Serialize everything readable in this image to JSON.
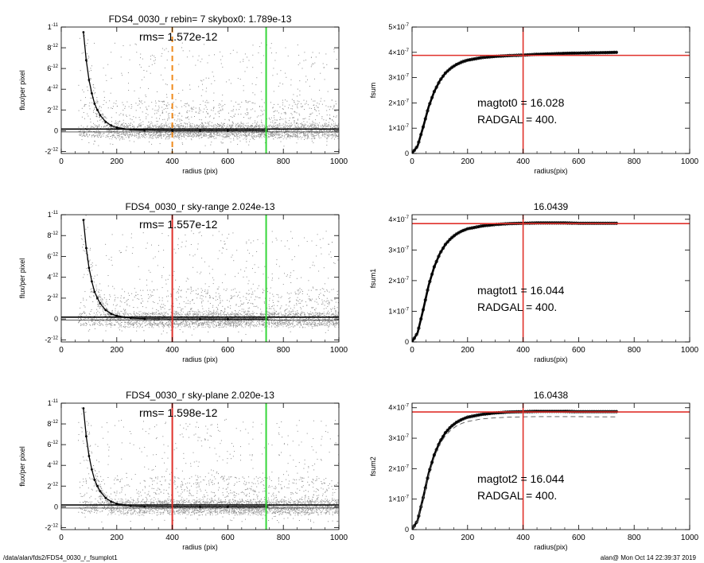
{
  "footer": {
    "path": "/data/alan/fds2/FDS4_0030_r_fsumplot1",
    "user_time": "alan@  Mon Oct 14 22:39:37 2019"
  },
  "colors": {
    "red": "#e0312b",
    "green": "#36d639",
    "orange": "#ef8a1c",
    "points": "#8c8c8c",
    "profile": "#000000"
  },
  "chart_data": [
    {
      "id": "profile1",
      "type": "scatter",
      "title": "FDS4_0030_r rebin= 7    skybox0:  1.789e-13",
      "annotation": "rms= 1.572e-12",
      "xlabel": "radius (pix)",
      "ylabel": "flux/per pixel",
      "xlim": [
        0,
        1000
      ],
      "ylim": [
        -2.2e-12,
        1e-11
      ],
      "xticks": [
        "0",
        "200",
        "400",
        "600",
        "800",
        "1000"
      ],
      "yticks": [
        {
          "v": -2e-12,
          "m": "-2",
          "e": "-12"
        },
        {
          "v": 0,
          "m": "0",
          "e": ""
        },
        {
          "v": 2e-12,
          "m": "2",
          "e": "-12"
        },
        {
          "v": 4e-12,
          "m": "4",
          "e": "-12"
        },
        {
          "v": 6e-12,
          "m": "6",
          "e": "-12"
        },
        {
          "v": 8e-12,
          "m": "8",
          "e": "-12"
        },
        {
          "v": 1e-11,
          "m": "1",
          "e": "-11"
        }
      ],
      "vlines": [
        {
          "x": 400,
          "color": "orange",
          "dashed": true
        },
        {
          "x": 738,
          "color": "green",
          "dashed": false
        }
      ],
      "hlines": [
        1.789e-13,
        1.2e-13,
        -1.2e-13
      ],
      "profile_points": [
        {
          "x": 80,
          "y": 9.5e-12
        },
        {
          "x": 90,
          "y": 6.8e-12
        },
        {
          "x": 100,
          "y": 4.9e-12
        },
        {
          "x": 110,
          "y": 3.6e-12
        },
        {
          "x": 120,
          "y": 2.6e-12
        },
        {
          "x": 130,
          "y": 2e-12
        },
        {
          "x": 140,
          "y": 1.5e-12
        },
        {
          "x": 160,
          "y": 8.5e-13
        },
        {
          "x": 180,
          "y": 5e-13
        },
        {
          "x": 200,
          "y": 3e-13
        },
        {
          "x": 250,
          "y": 1e-13
        },
        {
          "x": 300,
          "y": 3e-14
        },
        {
          "x": 400,
          "y": 0
        },
        {
          "x": 500,
          "y": 0
        },
        {
          "x": 600,
          "y": 0
        },
        {
          "x": 740,
          "y": 0
        }
      ]
    },
    {
      "id": "fsum0",
      "type": "line",
      "title": "",
      "annotation_lines": [
        "magtot0 =  16.028",
        "RADGAL =    400."
      ],
      "xlabel": "radius(pix)",
      "ylabel": "fsum",
      "xlim": [
        0,
        1000
      ],
      "ylim": [
        0,
        5e-07
      ],
      "xticks": [
        "0",
        "200",
        "400",
        "600",
        "800",
        "1000"
      ],
      "yticks": [
        {
          "v": 0,
          "m": "0",
          "e": ""
        },
        {
          "v": 1e-07,
          "m": "1×10",
          "e": "-7"
        },
        {
          "v": 2e-07,
          "m": "2×10",
          "e": "-7"
        },
        {
          "v": 3e-07,
          "m": "3×10",
          "e": "-7"
        },
        {
          "v": 4e-07,
          "m": "4×10",
          "e": "-7"
        },
        {
          "v": 5e-07,
          "m": "5×10",
          "e": "-7"
        }
      ],
      "vline": 400,
      "hline": 3.88e-07,
      "series": [
        {
          "role": "markers",
          "x": [
            0,
            20,
            40,
            60,
            80,
            100,
            120,
            140,
            160,
            180,
            200,
            250,
            300,
            350,
            400,
            450,
            500,
            550,
            600,
            650,
            700,
            740
          ],
          "y": [
            0,
            3e-08,
            1.05e-07,
            1.85e-07,
            2.45e-07,
            2.88e-07,
            3.18e-07,
            3.38e-07,
            3.52e-07,
            3.62e-07,
            3.69e-07,
            3.79e-07,
            3.84e-07,
            3.87e-07,
            3.89e-07,
            3.92e-07,
            3.94e-07,
            3.96e-07,
            3.97e-07,
            3.98e-07,
            3.99e-07,
            4e-07
          ]
        }
      ]
    },
    {
      "id": "profile2",
      "type": "scatter",
      "title": "FDS4_0030_r sky-range  2.024e-13",
      "annotation": "rms= 1.557e-12",
      "xlabel": "radius (pix)",
      "ylabel": "flux/per pixel",
      "xlim": [
        0,
        1000
      ],
      "ylim": [
        -2.2e-12,
        1e-11
      ],
      "xticks": [
        "0",
        "200",
        "400",
        "600",
        "800",
        "1000"
      ],
      "yticks": [
        {
          "v": -2e-12,
          "m": "-2",
          "e": "-12"
        },
        {
          "v": 0,
          "m": "0",
          "e": ""
        },
        {
          "v": 2e-12,
          "m": "2",
          "e": "-12"
        },
        {
          "v": 4e-12,
          "m": "4",
          "e": "-12"
        },
        {
          "v": 6e-12,
          "m": "6",
          "e": "-12"
        },
        {
          "v": 8e-12,
          "m": "8",
          "e": "-12"
        },
        {
          "v": 1e-11,
          "m": "1",
          "e": "-11"
        }
      ],
      "vlines": [
        {
          "x": 400,
          "color": "red",
          "dashed": false
        },
        {
          "x": 738,
          "color": "green",
          "dashed": false
        }
      ],
      "hlines": [
        2.024e-13,
        1.2e-13,
        -1.2e-13
      ],
      "profile_points": [
        {
          "x": 80,
          "y": 9.5e-12
        },
        {
          "x": 90,
          "y": 6.8e-12
        },
        {
          "x": 100,
          "y": 4.9e-12
        },
        {
          "x": 110,
          "y": 3.6e-12
        },
        {
          "x": 120,
          "y": 2.6e-12
        },
        {
          "x": 130,
          "y": 2e-12
        },
        {
          "x": 140,
          "y": 1.5e-12
        },
        {
          "x": 160,
          "y": 8.5e-13
        },
        {
          "x": 180,
          "y": 5e-13
        },
        {
          "x": 200,
          "y": 3e-13
        },
        {
          "x": 250,
          "y": 1e-13
        },
        {
          "x": 300,
          "y": 3e-14
        },
        {
          "x": 400,
          "y": 0
        },
        {
          "x": 500,
          "y": 0
        },
        {
          "x": 600,
          "y": 0
        },
        {
          "x": 740,
          "y": 0
        }
      ]
    },
    {
      "id": "fsum1",
      "type": "line",
      "title": "16.0439",
      "annotation_lines": [
        "magtot1 =  16.044",
        "RADGAL =    400."
      ],
      "xlabel": "radius(pix)",
      "ylabel": "fsum1",
      "xlim": [
        0,
        1000
      ],
      "ylim": [
        0,
        4.15e-07
      ],
      "xticks": [
        "0",
        "200",
        "400",
        "600",
        "800",
        "1000"
      ],
      "yticks": [
        {
          "v": 0,
          "m": "0",
          "e": ""
        },
        {
          "v": 1e-07,
          "m": "1×10",
          "e": "-7"
        },
        {
          "v": 2e-07,
          "m": "2×10",
          "e": "-7"
        },
        {
          "v": 3e-07,
          "m": "3×10",
          "e": "-7"
        },
        {
          "v": 4e-07,
          "m": "4×10",
          "e": "-7"
        }
      ],
      "vline": 400,
      "hline": 3.86e-07,
      "series": [
        {
          "role": "markers",
          "x": [
            0,
            20,
            40,
            60,
            80,
            100,
            120,
            140,
            160,
            180,
            200,
            250,
            300,
            350,
            400,
            450,
            500,
            550,
            600,
            650,
            700,
            740
          ],
          "y": [
            0,
            3e-08,
            1.05e-07,
            1.85e-07,
            2.45e-07,
            2.88e-07,
            3.18e-07,
            3.38e-07,
            3.52e-07,
            3.62e-07,
            3.69e-07,
            3.78e-07,
            3.83e-07,
            3.86e-07,
            3.87e-07,
            3.88e-07,
            3.88e-07,
            3.88e-07,
            3.87e-07,
            3.87e-07,
            3.87e-07,
            3.87e-07
          ]
        }
      ]
    },
    {
      "id": "profile3",
      "type": "scatter",
      "title": "FDS4_0030_r sky-plane  2.020e-13",
      "annotation": "rms= 1.598e-12",
      "xlabel": "radius (pix)",
      "ylabel": "flux/per pixel",
      "xlim": [
        0,
        1000
      ],
      "ylim": [
        -2.2e-12,
        1e-11
      ],
      "xticks": [
        "0",
        "200",
        "400",
        "600",
        "800",
        "1000"
      ],
      "yticks": [
        {
          "v": -2e-12,
          "m": "-2",
          "e": "-12"
        },
        {
          "v": 0,
          "m": "0",
          "e": ""
        },
        {
          "v": 2e-12,
          "m": "2",
          "e": "-12"
        },
        {
          "v": 4e-12,
          "m": "4",
          "e": "-12"
        },
        {
          "v": 6e-12,
          "m": "6",
          "e": "-12"
        },
        {
          "v": 8e-12,
          "m": "8",
          "e": "-12"
        },
        {
          "v": 1e-11,
          "m": "1",
          "e": "-11"
        }
      ],
      "vlines": [
        {
          "x": 400,
          "color": "red",
          "dashed": false
        },
        {
          "x": 738,
          "color": "green",
          "dashed": false
        }
      ],
      "hlines": [
        2.02e-13,
        1.2e-13,
        -1.2e-13
      ],
      "profile_points": [
        {
          "x": 80,
          "y": 9.5e-12
        },
        {
          "x": 90,
          "y": 6.8e-12
        },
        {
          "x": 100,
          "y": 4.9e-12
        },
        {
          "x": 110,
          "y": 3.6e-12
        },
        {
          "x": 120,
          "y": 2.6e-12
        },
        {
          "x": 130,
          "y": 2e-12
        },
        {
          "x": 140,
          "y": 1.5e-12
        },
        {
          "x": 160,
          "y": 8.5e-13
        },
        {
          "x": 180,
          "y": 5e-13
        },
        {
          "x": 200,
          "y": 3e-13
        },
        {
          "x": 250,
          "y": 1e-13
        },
        {
          "x": 300,
          "y": 3e-14
        },
        {
          "x": 400,
          "y": 0
        },
        {
          "x": 500,
          "y": 0
        },
        {
          "x": 600,
          "y": 0
        },
        {
          "x": 740,
          "y": 0
        }
      ]
    },
    {
      "id": "fsum2",
      "type": "line",
      "title": "16.0438",
      "annotation_lines": [
        "magtot2 =  16.044",
        "RADGAL =    400."
      ],
      "xlabel": "radius(pix)",
      "ylabel": "fsum2",
      "xlim": [
        0,
        1000
      ],
      "ylim": [
        0,
        4.15e-07
      ],
      "xticks": [
        "0",
        "200",
        "400",
        "600",
        "800",
        "1000"
      ],
      "yticks": [
        {
          "v": 0,
          "m": "0",
          "e": ""
        },
        {
          "v": 1e-07,
          "m": "1×10",
          "e": "-7"
        },
        {
          "v": 2e-07,
          "m": "2×10",
          "e": "-7"
        },
        {
          "v": 3e-07,
          "m": "3×10",
          "e": "-7"
        },
        {
          "v": 4e-07,
          "m": "4×10",
          "e": "-7"
        }
      ],
      "vline": 400,
      "hline": 3.86e-07,
      "series": [
        {
          "role": "markers",
          "x": [
            0,
            20,
            40,
            60,
            80,
            100,
            120,
            140,
            160,
            180,
            200,
            250,
            300,
            350,
            400,
            450,
            500,
            550,
            600,
            650,
            700,
            740
          ],
          "y": [
            0,
            3e-08,
            1.05e-07,
            1.85e-07,
            2.45e-07,
            2.88e-07,
            3.18e-07,
            3.38e-07,
            3.52e-07,
            3.62e-07,
            3.69e-07,
            3.78e-07,
            3.83e-07,
            3.86e-07,
            3.87e-07,
            3.88e-07,
            3.88e-07,
            3.88e-07,
            3.87e-07,
            3.87e-07,
            3.87e-07,
            3.87e-07
          ]
        },
        {
          "role": "dashed",
          "x": [
            0,
            20,
            40,
            60,
            80,
            100,
            120,
            140,
            160,
            180,
            200,
            250,
            300,
            350,
            400,
            450,
            500,
            550,
            600,
            650,
            700,
            740
          ],
          "y": [
            0,
            2.9e-08,
            1.02e-07,
            1.8e-07,
            2.38e-07,
            2.8e-07,
            3.08e-07,
            3.27e-07,
            3.4e-07,
            3.49e-07,
            3.55e-07,
            3.63e-07,
            3.67e-07,
            3.69e-07,
            3.7e-07,
            3.71e-07,
            3.71e-07,
            3.71e-07,
            3.71e-07,
            3.7e-07,
            3.7e-07,
            3.7e-07
          ]
        }
      ]
    }
  ]
}
